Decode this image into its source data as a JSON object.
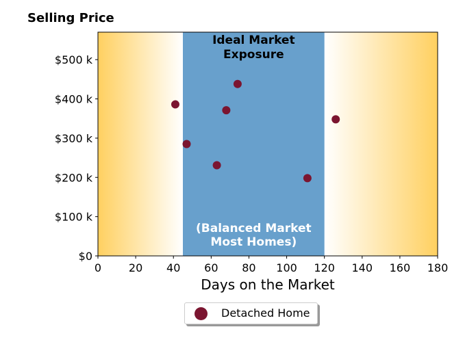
{
  "chart_data": {
    "type": "scatter",
    "title": "Selling Price",
    "xlabel": "Days on the Market",
    "ylabel": "",
    "xlim": [
      0,
      180
    ],
    "ylim": [
      0,
      570000
    ],
    "xticks": [
      0,
      20,
      40,
      60,
      80,
      100,
      120,
      140,
      160,
      180
    ],
    "yticks": [
      {
        "value": 0,
        "label": "$0"
      },
      {
        "value": 100000,
        "label": "$100 k"
      },
      {
        "value": 200000,
        "label": "$200 k"
      },
      {
        "value": 300000,
        "label": "$300 k"
      },
      {
        "value": 400000,
        "label": "$400 k"
      },
      {
        "value": 500000,
        "label": "$500 k"
      }
    ],
    "series": [
      {
        "name": "Detached Home",
        "color": "#7b1530",
        "points": [
          {
            "x": 41,
            "y": 386000
          },
          {
            "x": 47,
            "y": 285000
          },
          {
            "x": 63,
            "y": 231000
          },
          {
            "x": 68,
            "y": 371000
          },
          {
            "x": 74,
            "y": 438000
          },
          {
            "x": 111,
            "y": 198000
          },
          {
            "x": 126,
            "y": 348000
          }
        ]
      }
    ],
    "bands": [
      {
        "from": 0,
        "to": 45,
        "type": "gradient-left",
        "color": "#ffd060"
      },
      {
        "from": 45,
        "to": 120,
        "type": "solid",
        "color": "#68a0cc"
      },
      {
        "from": 120,
        "to": 180,
        "type": "gradient-right",
        "color": "#ffd060"
      }
    ],
    "annotations": {
      "top_line1": "Ideal Market",
      "top_line2": "Exposure",
      "bottom_line1": "(Balanced Market",
      "bottom_line2": "Most Homes)"
    },
    "legend_position": "bottom-center",
    "grid": false
  }
}
